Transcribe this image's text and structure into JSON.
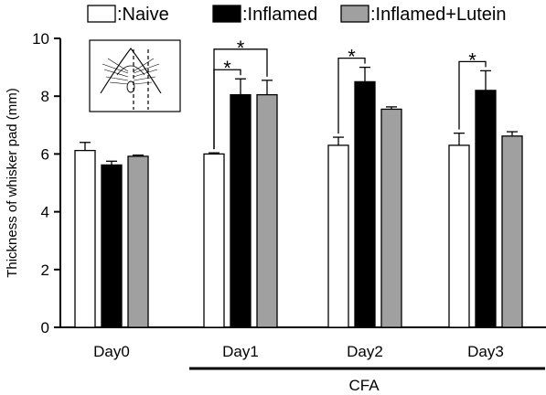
{
  "chart_data": {
    "type": "bar",
    "categories": [
      "Day0",
      "Day1",
      "Day2",
      "Day3"
    ],
    "series": [
      {
        "name": ":Naive",
        "color": "#ffffff",
        "values": [
          6.12,
          6.0,
          6.3,
          6.3
        ],
        "errors": [
          0.28,
          0.04,
          0.28,
          0.42
        ]
      },
      {
        "name": ":Inflamed",
        "color": "#000000",
        "values": [
          5.62,
          8.05,
          8.5,
          8.2
        ],
        "errors": [
          0.13,
          0.55,
          0.5,
          0.68
        ]
      },
      {
        "name": ":Inflamed+Lutein",
        "color": "#a0a0a0",
        "values": [
          5.92,
          8.05,
          7.55,
          6.62
        ],
        "errors": [
          0.04,
          0.5,
          0.08,
          0.15
        ]
      }
    ],
    "ylabel": "Thickness of whisker pad (mm)",
    "ylim": [
      0,
      10
    ],
    "yticks": [
      "0",
      "2",
      "4",
      "6",
      "8",
      "10"
    ],
    "grid": false,
    "legend_position": "top",
    "significance": [
      {
        "category": "Day1",
        "from": 0,
        "to": 1,
        "label": "*"
      },
      {
        "category": "Day1",
        "from": 0,
        "to": 2,
        "label": "*"
      },
      {
        "category": "Day2",
        "from": 0,
        "to": 1,
        "label": "*"
      },
      {
        "category": "Day3",
        "from": 0,
        "to": 1,
        "label": "*"
      }
    ],
    "treatment_label": "CFA",
    "inset_icon": "whisker-pad-diagram"
  }
}
